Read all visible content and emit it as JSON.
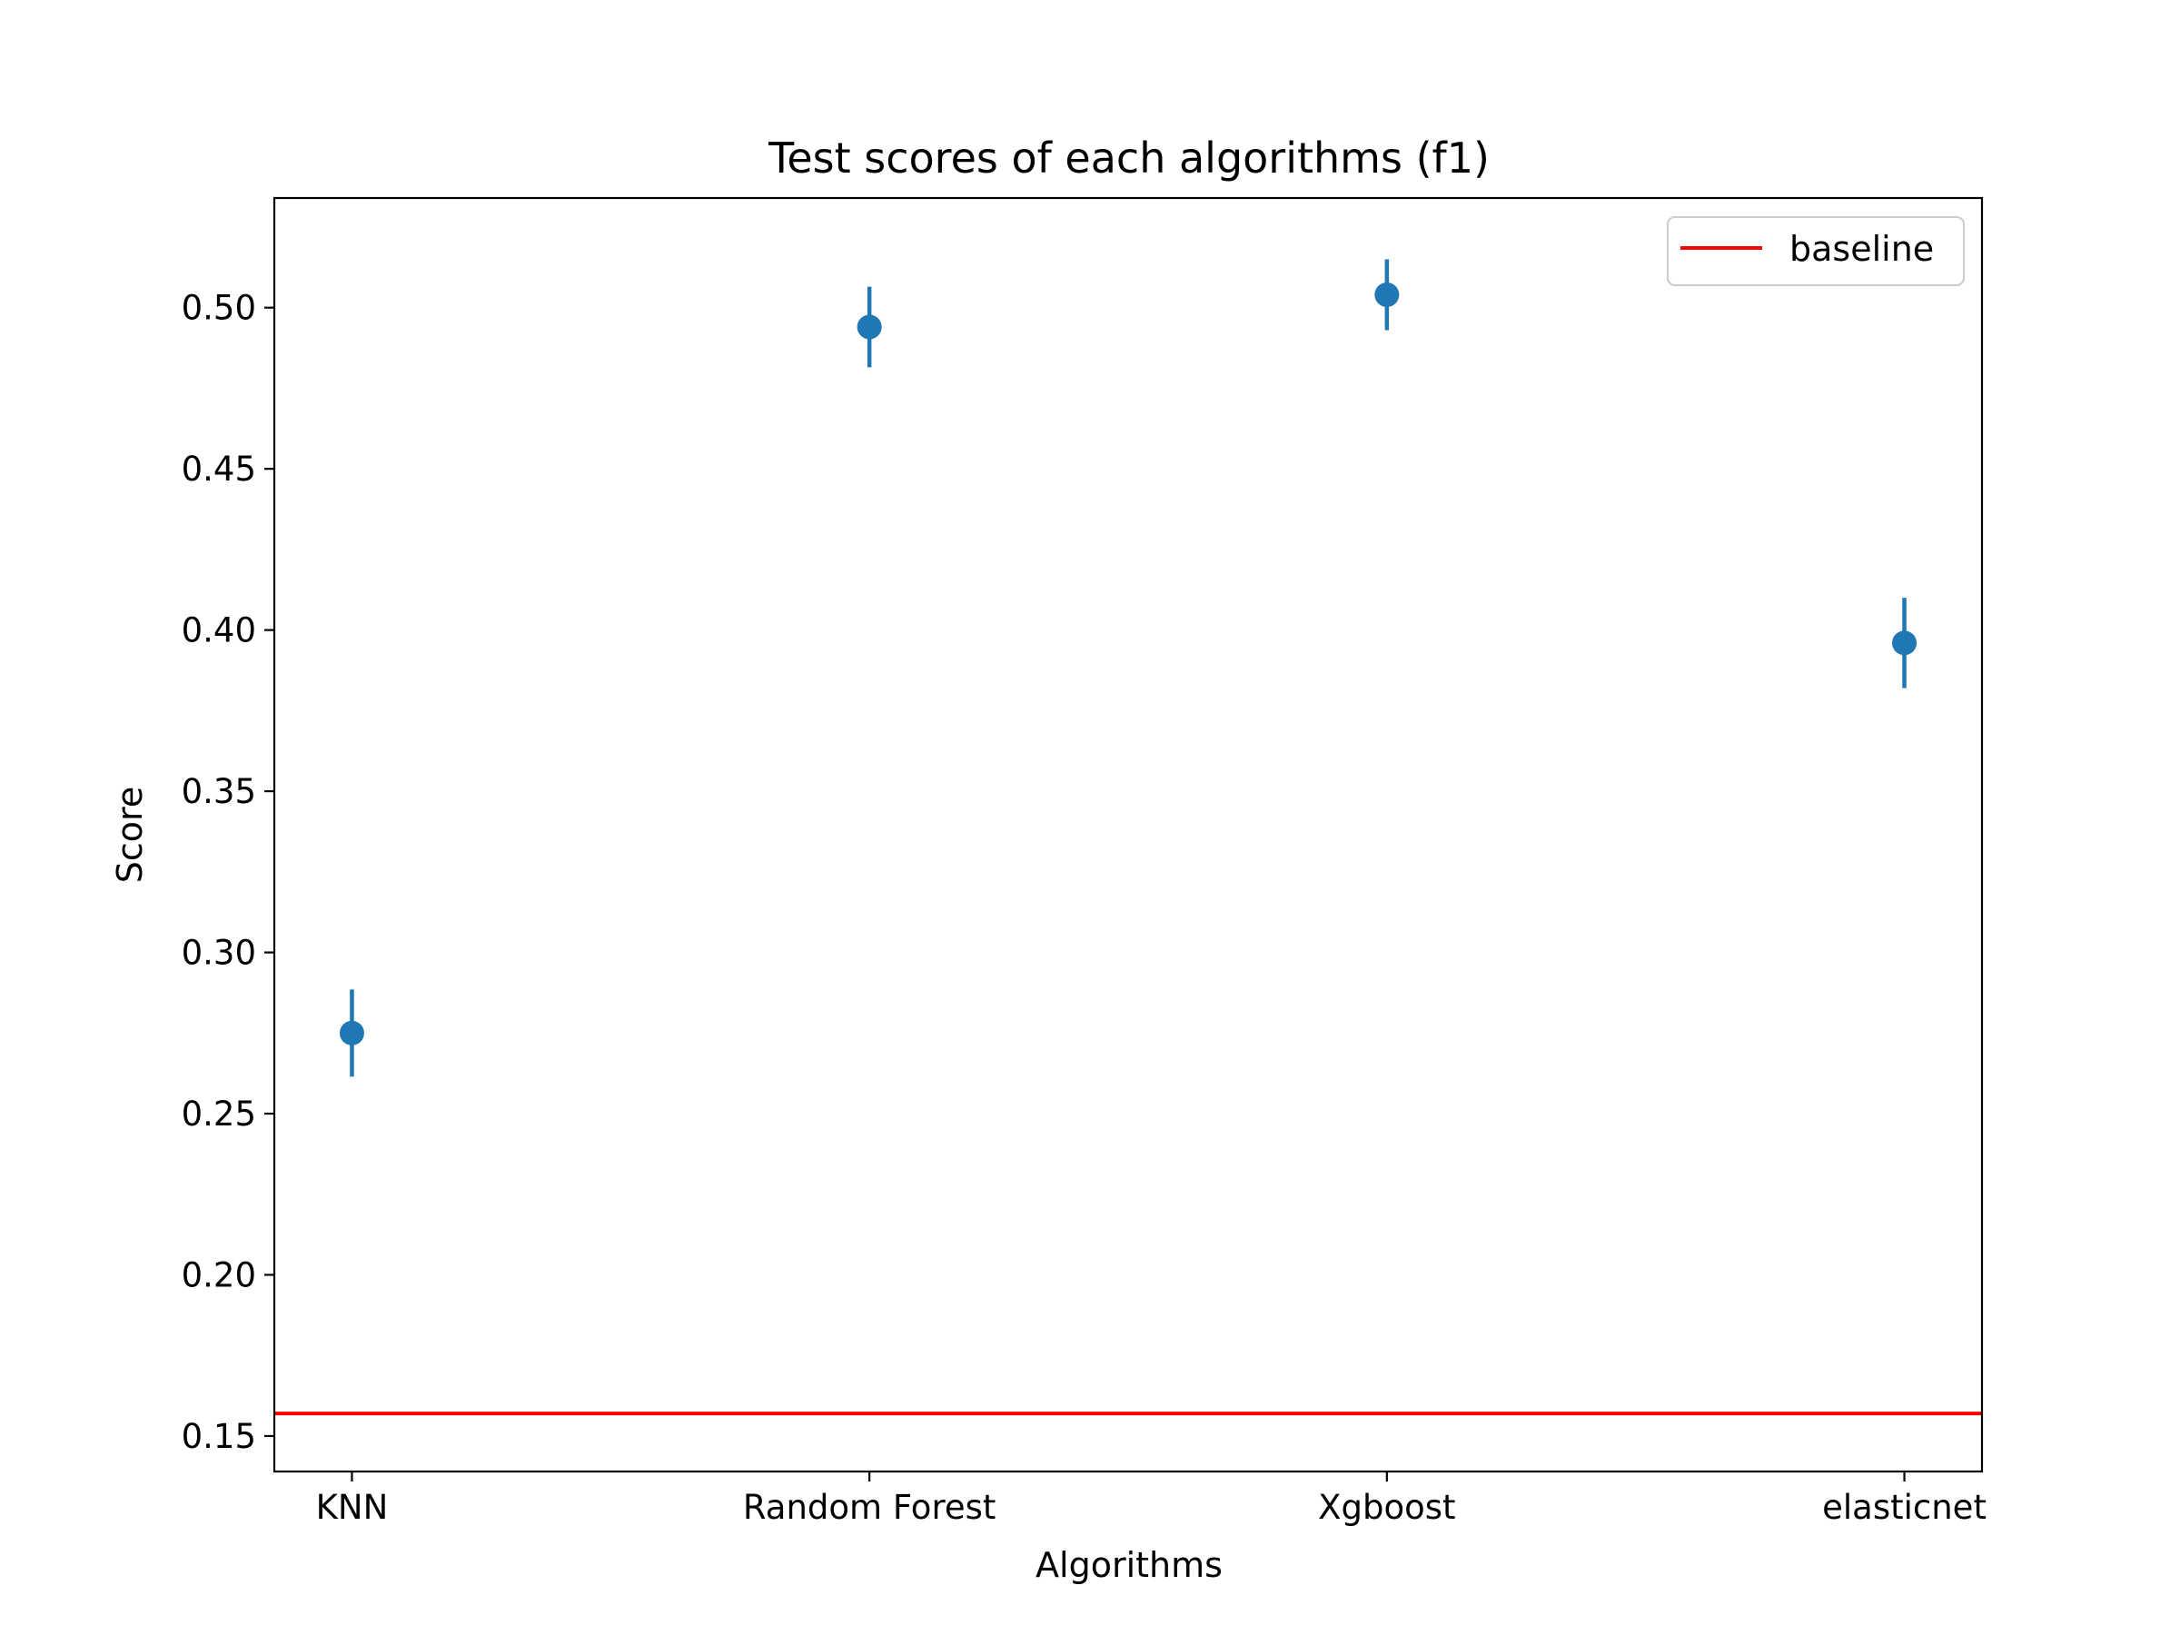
{
  "chart_data": {
    "type": "scatter",
    "title": "Test scores of each algorithms (f1)",
    "xlabel": "Algorithms",
    "ylabel": "Score",
    "categories": [
      "KNN",
      "Random Forest",
      "Xgboost",
      "elasticnet"
    ],
    "series": [
      {
        "values": [
          0.275,
          0.494,
          0.504,
          0.396
        ],
        "error": [
          0.0135,
          0.0125,
          0.011,
          0.014
        ],
        "color": "#1f77b4"
      }
    ],
    "baseline": {
      "name": "baseline",
      "value": 0.157,
      "color": "#ff0000"
    },
    "ylim": [
      0.139,
      0.534
    ],
    "yticks": [
      0.15,
      0.2,
      0.25,
      0.3,
      0.35,
      0.4,
      0.45,
      0.5
    ],
    "ytick_labels": [
      "0.15",
      "0.20",
      "0.25",
      "0.30",
      "0.35",
      "0.40",
      "0.45",
      "0.50"
    ],
    "grid": false,
    "legend_position": "top-right"
  }
}
